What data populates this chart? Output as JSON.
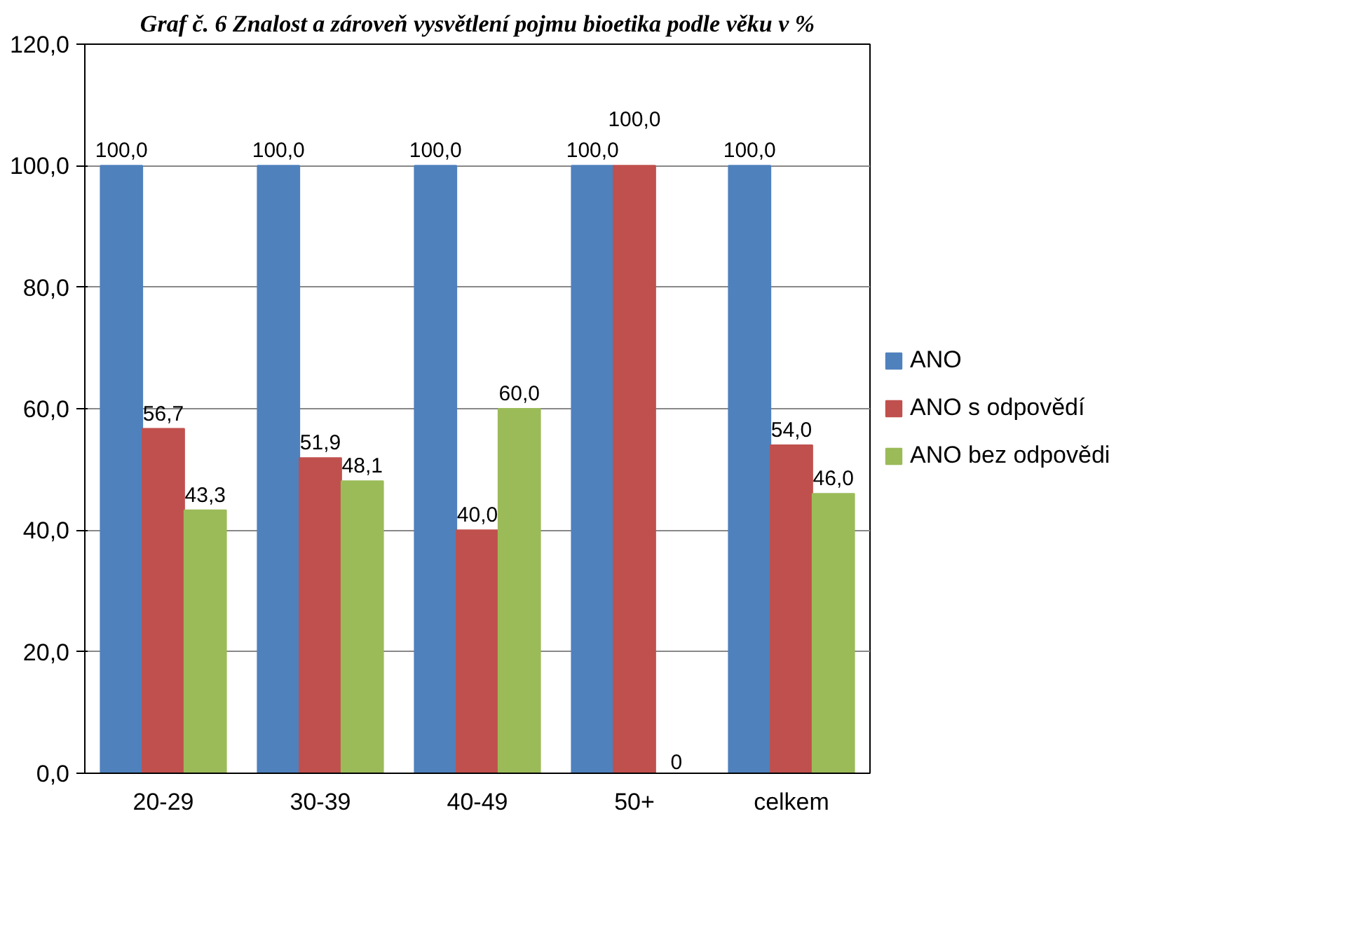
{
  "chart_data": {
    "type": "bar",
    "title": "Graf č. 6 Znalost a zároveň vysvětlení pojmu bioetika podle věku v %",
    "categories": [
      "20-29",
      "30-39",
      "40-49",
      "50+",
      "celkem"
    ],
    "series": [
      {
        "name": "ANO",
        "color": "#4f81bd",
        "values": [
          100.0,
          100.0,
          100.0,
          100.0,
          100.0
        ],
        "value_labels": [
          "100,0",
          "100,0",
          "100,0",
          "100,0",
          "100,0"
        ]
      },
      {
        "name": "ANO s odpovědí",
        "color": "#c0504d",
        "values": [
          56.7,
          51.9,
          40.0,
          100.0,
          54.0
        ],
        "value_labels": [
          "56,7",
          "51,9",
          "40,0",
          "100,0",
          "54,0"
        ]
      },
      {
        "name": "ANO bez odpovědi",
        "color": "#9bbb59",
        "values": [
          43.3,
          48.1,
          60.0,
          0,
          46.0
        ],
        "value_labels": [
          "43,3",
          "48,1",
          "60,0",
          "0",
          "46,0"
        ]
      }
    ],
    "ylim": [
      0,
      120
    ],
    "yticks": [
      {
        "value": 0,
        "label": "0,0"
      },
      {
        "value": 20,
        "label": "20,0"
      },
      {
        "value": 40,
        "label": "40,0"
      },
      {
        "value": 60,
        "label": "60,0"
      },
      {
        "value": 80,
        "label": "80,0"
      },
      {
        "value": 100,
        "label": "100,0"
      },
      {
        "value": 120,
        "label": "120,0"
      }
    ],
    "grid": "y",
    "legend": "right"
  }
}
